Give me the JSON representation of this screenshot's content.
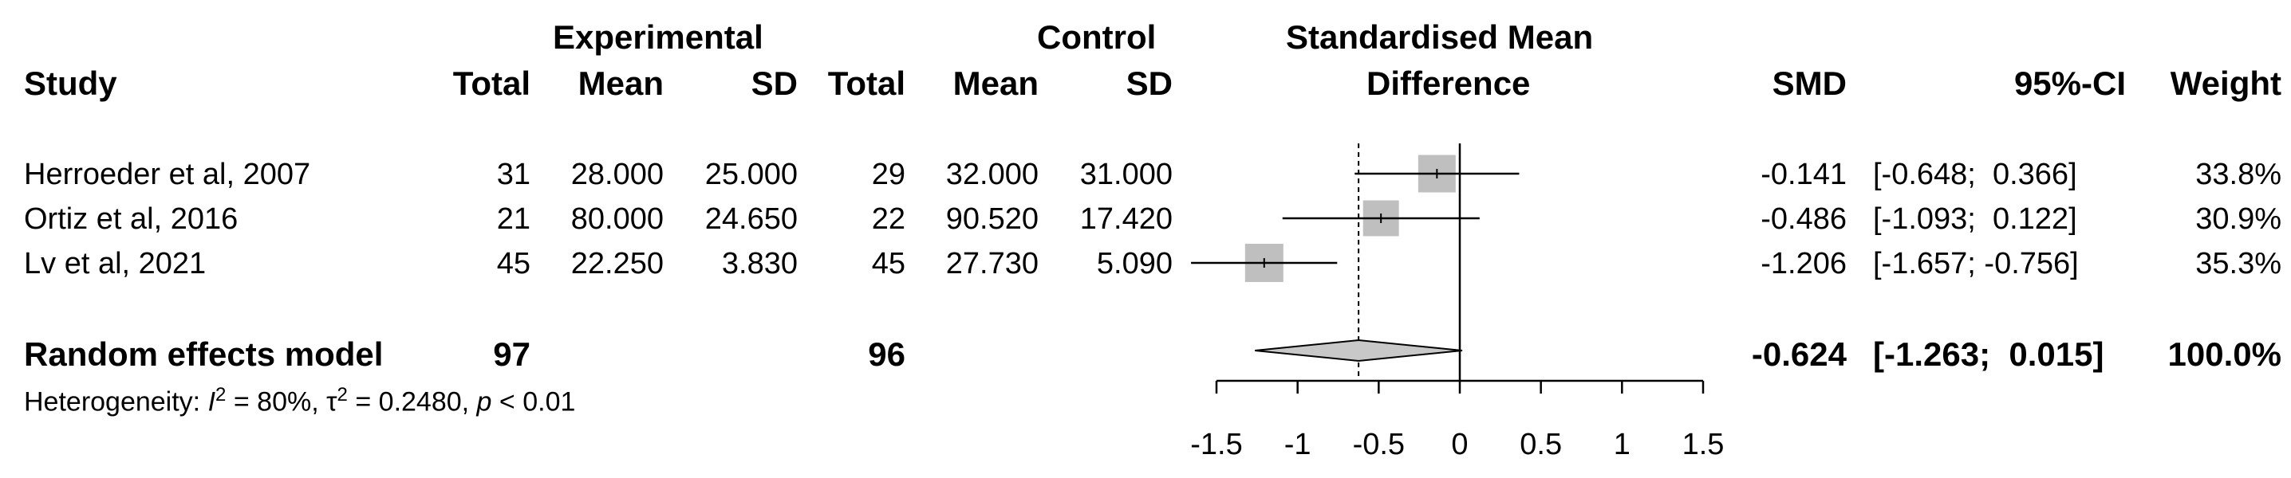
{
  "header": {
    "study": "Study",
    "experimental": "Experimental",
    "control": "Control",
    "total": "Total",
    "mean": "Mean",
    "sd": "SD",
    "smd_title_line1": "Standardised Mean",
    "smd_title_line2": "Difference",
    "smd": "SMD",
    "ci": "95%-CI",
    "weight": "Weight"
  },
  "studies": [
    {
      "name": "Herroeder et al, 2007",
      "e_total": "31",
      "e_mean": "28.000",
      "e_sd": "25.000",
      "c_total": "29",
      "c_mean": "32.000",
      "c_sd": "31.000",
      "smd": "-0.141",
      "ci": "[-0.648;  0.366]",
      "weight": "33.8%"
    },
    {
      "name": "Ortiz et al, 2016",
      "e_total": "21",
      "e_mean": "80.000",
      "e_sd": "24.650",
      "c_total": "22",
      "c_mean": "90.520",
      "c_sd": "17.420",
      "smd": "-0.486",
      "ci": "[-1.093;  0.122]",
      "weight": "30.9%"
    },
    {
      "name": "Lv et al, 2021",
      "e_total": "45",
      "e_mean": "22.250",
      "e_sd": "3.830",
      "c_total": "45",
      "c_mean": "27.730",
      "c_sd": "5.090",
      "smd": "-1.206",
      "ci": "[-1.657; -0.756]",
      "weight": "35.3%"
    }
  ],
  "pooled": {
    "name": "Random effects model",
    "e_total": "97",
    "c_total": "96",
    "smd": "-0.624",
    "ci": "[-1.263;  0.015]",
    "weight": "100.0%"
  },
  "heterogeneity": {
    "prefix": "Heterogeneity: ",
    "i2_symbol": "I",
    "i2_value": " = 80%, ",
    "tau2_symbol": "τ",
    "tau2_value": " = 0.2480, ",
    "p_symbol": "p",
    "p_value": " < 0.01",
    "exponent": "2"
  },
  "chart_data": {
    "type": "forest",
    "title": "Standardised Mean Difference",
    "xlim": [
      -1.5,
      1.5
    ],
    "x_ticks": [
      "-1.5",
      "-1",
      "-0.5",
      "0",
      "0.5",
      "1",
      "1.5"
    ],
    "null_line": 0,
    "pooled_reference_line": -0.624,
    "studies": [
      {
        "label": "Herroeder et al, 2007",
        "smd": -0.141,
        "lower": -0.648,
        "upper": 0.366,
        "weight": 33.8
      },
      {
        "label": "Ortiz et al, 2016",
        "smd": -0.486,
        "lower": -1.093,
        "upper": 0.122,
        "weight": 30.9
      },
      {
        "label": "Lv et al, 2021",
        "smd": -1.206,
        "lower": -1.657,
        "upper": -0.756,
        "weight": 35.3
      }
    ],
    "pooled": {
      "label": "Random effects model",
      "smd": -0.624,
      "lower": -1.263,
      "upper": 0.015
    },
    "colors": {
      "box": "#bfbfbf",
      "diamond": "#c8c8c8",
      "line": "#000000"
    }
  }
}
